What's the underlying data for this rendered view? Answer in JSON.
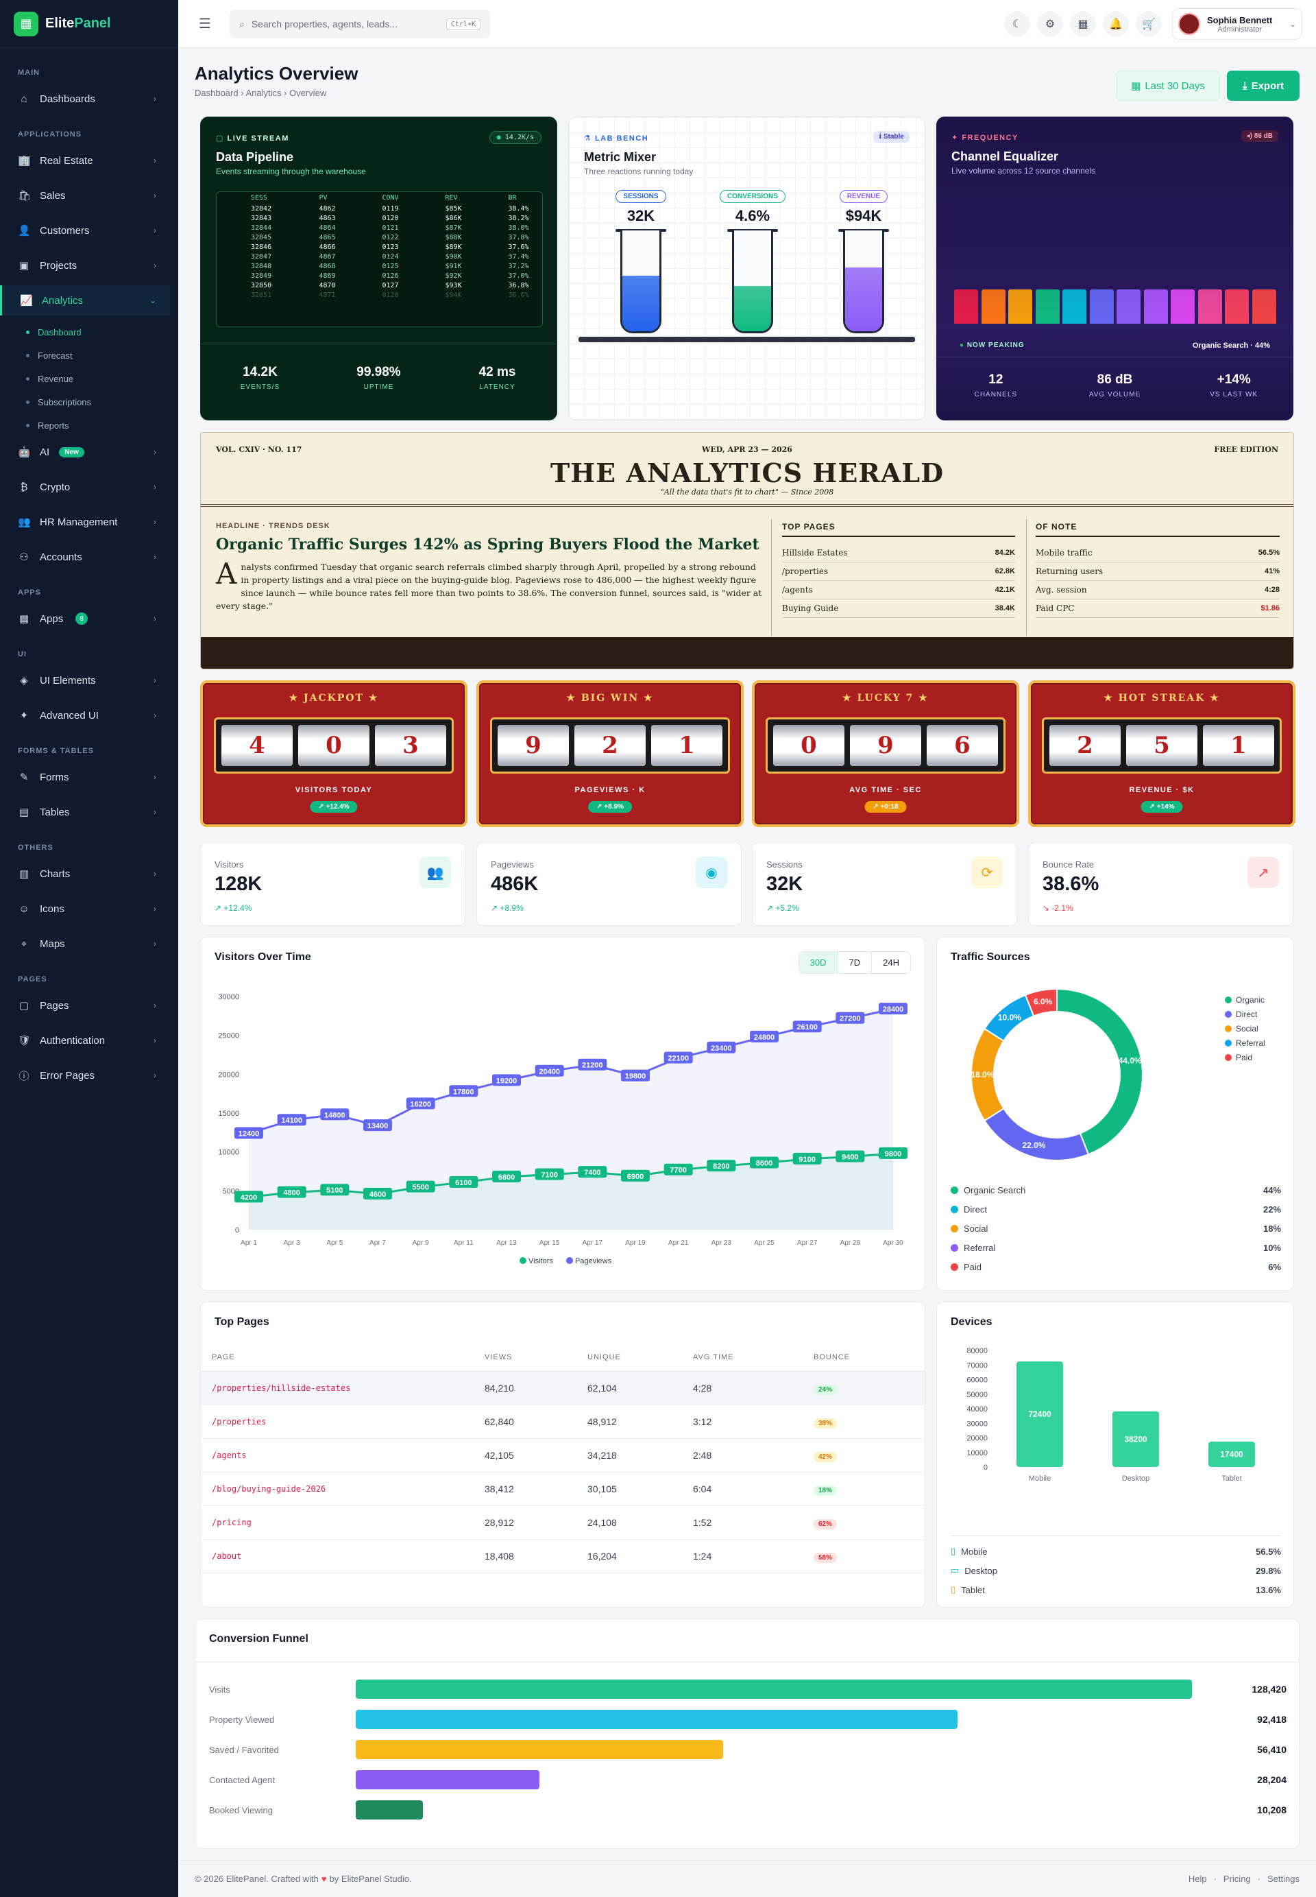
{
  "app": {
    "brand_a": "Elite",
    "brand_b": "Panel"
  },
  "sidebar": {
    "sections": [
      "MAIN",
      "APPLICATIONS",
      "APPS",
      "UI",
      "FORMS & TABLES",
      "OTHERS",
      "PAGES"
    ],
    "items": [
      {
        "label": "Dashboards"
      },
      {
        "label": "Real Estate"
      },
      {
        "label": "Sales"
      },
      {
        "label": "Customers"
      },
      {
        "label": "Projects"
      },
      {
        "label": "Analytics"
      },
      {
        "label": "AI",
        "badge": "New"
      },
      {
        "label": "Crypto"
      },
      {
        "label": "HR Management"
      },
      {
        "label": "Accounts"
      },
      {
        "label": "Apps",
        "badge": "8"
      },
      {
        "label": "UI Elements"
      },
      {
        "label": "Advanced UI"
      },
      {
        "label": "Forms"
      },
      {
        "label": "Tables"
      },
      {
        "label": "Charts"
      },
      {
        "label": "Icons"
      },
      {
        "label": "Maps"
      },
      {
        "label": "Pages"
      },
      {
        "label": "Authentication"
      },
      {
        "label": "Error Pages"
      }
    ],
    "sub": [
      "Dashboard",
      "Forecast",
      "Revenue",
      "Subscriptions",
      "Reports"
    ]
  },
  "topbar": {
    "search_placeholder": "Search properties, agents, leads...",
    "kbd": "Ctrl+K",
    "user_name": "Sophia Bennett",
    "user_role": "Administrator"
  },
  "header": {
    "title": "Analytics Overview",
    "crumbs": [
      "Dashboard",
      "Analytics",
      "Overview"
    ],
    "range_btn": "Last 30 Days",
    "export_btn": "Export"
  },
  "pipeline": {
    "tag": "LIVE STREAM",
    "rate": "14.2K/s",
    "title": "Data Pipeline",
    "subtitle": "Events streaming through the warehouse",
    "cols": [
      "SESS",
      "PV",
      "CONV",
      "REV",
      "BR"
    ],
    "rows": [
      [
        "32842",
        "4862",
        "0119",
        "$85K",
        "38.4%"
      ],
      [
        "32843",
        "4863",
        "0120",
        "$86K",
        "38.2%"
      ],
      [
        "32844",
        "4864",
        "0121",
        "$87K",
        "38.0%"
      ],
      [
        "32845",
        "4865",
        "0122",
        "$88K",
        "37.8%"
      ],
      [
        "32846",
        "4866",
        "0123",
        "$89K",
        "37.6%"
      ],
      [
        "32847",
        "4867",
        "0124",
        "$90K",
        "37.4%"
      ],
      [
        "32848",
        "4868",
        "0125",
        "$91K",
        "37.2%"
      ],
      [
        "32849",
        "4869",
        "0126",
        "$92K",
        "37.0%"
      ],
      [
        "32850",
        "4870",
        "0127",
        "$93K",
        "36.8%"
      ],
      [
        "32851",
        "4871",
        "0128",
        "$94K",
        "36.6%"
      ]
    ],
    "stats": [
      {
        "v": "14.2K",
        "l": "EVENTS/S"
      },
      {
        "v": "99.98%",
        "l": "UPTIME"
      },
      {
        "v": "42 ms",
        "l": "LATENCY"
      }
    ]
  },
  "mixer": {
    "tag": "LAB BENCH",
    "status": "Stable",
    "title": "Metric Mixer",
    "subtitle": "Three reactions running today",
    "tubes": [
      {
        "label": "SESSIONS",
        "value": "32K",
        "color": "#2563eb",
        "fill": 0.55
      },
      {
        "label": "CONVERSIONS",
        "value": "4.6%",
        "color": "#10b981",
        "fill": 0.45
      },
      {
        "label": "REVENUE",
        "value": "$94K",
        "color": "#8b5cf6",
        "fill": 0.63
      }
    ]
  },
  "eq": {
    "tag": "FREQUENCY",
    "level": "86 dB",
    "title": "Channel Equalizer",
    "subtitle": "Live volume across 12 source channels",
    "peak_label": "NOW PEAKING",
    "peak_value": "Organic Search · 44%",
    "bars": [
      0.8,
      0.8,
      0.8,
      0.8,
      0.8,
      0.8,
      0.8,
      0.8,
      0.8,
      0.8,
      0.8,
      0.8
    ],
    "colors": [
      "#e11d48",
      "#f97316",
      "#f59e0b",
      "#10b981",
      "#06b6d4",
      "#6366f1",
      "#8b5cf6",
      "#a855f7",
      "#d946ef",
      "#ec4899",
      "#f43f5e",
      "#ef4444"
    ],
    "stats": [
      {
        "v": "12",
        "l": "CHANNELS"
      },
      {
        "v": "86 dB",
        "l": "AVG VOLUME"
      },
      {
        "v": "+14%",
        "l": "VS LAST WK"
      }
    ]
  },
  "herald": {
    "vol": "VOL. CXIV · NO. 117",
    "date": "WED, APR 23 — 2026",
    "edition": "FREE EDITION",
    "masthead": "THE ANALYTICS HERALD",
    "motto": "\"All the data that's fit to chart\" — Since 2008",
    "kicker": "HEADLINE · TRENDS DESK",
    "headline": "Organic Traffic Surges 142% as Spring Buyers Flood the Market",
    "drop": "A",
    "body": "nalysts confirmed Tuesday that organic search referrals climbed sharply through April, propelled by a strong rebound in property listings and a viral piece on the buying-guide blog. Pageviews rose to 486,000 — the highest weekly figure since launch — while bounce rates fell more than two points to 38.6%. The conversion funnel, sources said, is \"wider at every stage.\"",
    "top_title": "TOP PAGES",
    "top": [
      [
        "Hillside Estates",
        "84.2K"
      ],
      [
        "/properties",
        "62.8K"
      ],
      [
        "/agents",
        "42.1K"
      ],
      [
        "Buying Guide",
        "38.4K"
      ]
    ],
    "note_title": "OF NOTE",
    "note": [
      [
        "Mobile traffic",
        "56.5%"
      ],
      [
        "Returning users",
        "41%"
      ],
      [
        "Avg. session",
        "4:28"
      ],
      [
        "Paid CPC",
        "$1.86"
      ]
    ]
  },
  "slots": [
    {
      "title": "★ JACKPOT ★",
      "digits": [
        "4",
        "0",
        "3"
      ],
      "label": "VISITORS TODAY",
      "pill": "↗ +12.4%",
      "pill_color": "#10b981"
    },
    {
      "title": "★ BIG WIN ★",
      "digits": [
        "9",
        "2",
        "1"
      ],
      "label": "PAGEVIEWS · K",
      "pill": "↗ +8.9%",
      "pill_color": "#10b981"
    },
    {
      "title": "★ LUCKY 7 ★",
      "digits": [
        "0",
        "9",
        "6"
      ],
      "label": "AVG TIME · SEC",
      "pill": "↗ +0:18",
      "pill_color": "#f59e0b"
    },
    {
      "title": "★ HOT STREAK ★",
      "digits": [
        "2",
        "5",
        "1"
      ],
      "label": "REVENUE · $K",
      "pill": "↗ +14%",
      "pill_color": "#10b981"
    }
  ],
  "stats": [
    {
      "label": "Visitors",
      "value": "128K",
      "change": "↗ +12.4%",
      "color": "#10b981",
      "bg": "#e7f8ef",
      "icon": "users-icon",
      "glyph": "👥"
    },
    {
      "label": "Pageviews",
      "value": "486K",
      "change": "↗ +8.9%",
      "color": "#10b981",
      "bg": "#e0f5fc",
      "icon": "eye-icon",
      "glyph": "◉"
    },
    {
      "label": "Sessions",
      "value": "32K",
      "change": "↗ +5.2%",
      "color": "#10b981",
      "bg": "#fef6d8",
      "icon": "refresh-icon",
      "glyph": "⟳"
    },
    {
      "label": "Bounce Rate",
      "value": "38.6%",
      "change": "↘ -2.1%",
      "color": "#ef4444",
      "bg": "#fde8e8",
      "icon": "external-link-icon",
      "glyph": "↗"
    }
  ],
  "visitors_chart": {
    "title": "Visitors Over Time",
    "tabs": [
      "30D",
      "7D",
      "24H"
    ]
  },
  "chart_data": [
    {
      "type": "line",
      "title": "Visitors Over Time",
      "x": [
        "Apr 1",
        "Apr 3",
        "Apr 5",
        "Apr 7",
        "Apr 9",
        "Apr 11",
        "Apr 13",
        "Apr 15",
        "Apr 17",
        "Apr 19",
        "Apr 21",
        "Apr 23",
        "Apr 25",
        "Apr 27",
        "Apr 29",
        "Apr 30"
      ],
      "y_ticks": [
        0,
        5000,
        10000,
        15000,
        20000,
        25000,
        30000
      ],
      "ylim": [
        0,
        30000
      ],
      "series": [
        {
          "name": "Visitors",
          "color": "#10b981",
          "values": [
            4200,
            4800,
            5100,
            4600,
            5500,
            6100,
            6800,
            7100,
            7400,
            6900,
            7700,
            8200,
            8600,
            9100,
            9400,
            9800
          ]
        },
        {
          "name": "Pageviews",
          "color": "#6366f1",
          "values": [
            12400,
            14100,
            14800,
            13400,
            16200,
            17800,
            19200,
            20400,
            21200,
            19800,
            22100,
            23400,
            24800,
            26100,
            27200,
            28400
          ]
        }
      ]
    },
    {
      "type": "pie",
      "title": "Traffic Sources",
      "categories": [
        "Organic",
        "Direct",
        "Social",
        "Referral",
        "Paid"
      ],
      "full_names": [
        "Organic Search",
        "Direct",
        "Social",
        "Referral",
        "Paid"
      ],
      "values": [
        44,
        22,
        18,
        10,
        6
      ],
      "colors": [
        "#10b981",
        "#6366f1",
        "#f59e0b",
        "#0ea5e9",
        "#ef4444"
      ],
      "list_colors": [
        "#10b981",
        "#06b6d4",
        "#f59e0b",
        "#8b5cf6",
        "#ef4444"
      ]
    },
    {
      "type": "bar",
      "title": "Devices",
      "categories": [
        "Mobile",
        "Desktop",
        "Tablet"
      ],
      "values": [
        72400,
        38200,
        17400
      ],
      "y_ticks": [
        0,
        10000,
        20000,
        30000,
        40000,
        50000,
        60000,
        70000,
        80000
      ],
      "ylim": [
        0,
        80000
      ],
      "shares": [
        "56.5%",
        "29.8%",
        "13.6%"
      ]
    }
  ],
  "top_pages": {
    "title": "Top Pages",
    "cols": [
      "PAGE",
      "VIEWS",
      "UNIQUE",
      "AVG TIME",
      "BOUNCE"
    ],
    "rows": [
      [
        "/properties/hillside-estates",
        "84,210",
        "62,104",
        "4:28",
        "24%"
      ],
      [
        "/properties",
        "62,840",
        "48,912",
        "3:12",
        "38%"
      ],
      [
        "/agents",
        "42,105",
        "34,218",
        "2:48",
        "42%"
      ],
      [
        "/blog/buying-guide-2026",
        "38,412",
        "30,105",
        "6:04",
        "18%"
      ],
      [
        "/pricing",
        "28,912",
        "24,108",
        "1:52",
        "62%"
      ],
      [
        "/about",
        "18,408",
        "16,204",
        "1:24",
        "58%"
      ]
    ]
  },
  "funnel": {
    "title": "Conversion Funnel",
    "rows": [
      {
        "label": "Visits",
        "value": "128,420",
        "frac": 1.0,
        "color": "#22c58b"
      },
      {
        "label": "Property Viewed",
        "value": "92,418",
        "frac": 0.72,
        "color": "#22c3e6"
      },
      {
        "label": "Saved / Favorited",
        "value": "56,410",
        "frac": 0.439,
        "color": "#f7b818"
      },
      {
        "label": "Contacted Agent",
        "value": "28,204",
        "frac": 0.22,
        "color": "#8b5cf6"
      },
      {
        "label": "Booked Viewing",
        "value": "10,208",
        "frac": 0.08,
        "color": "#1f8a5b"
      }
    ]
  },
  "footer": {
    "left_a": "© 2026 ElitePanel. Crafted with",
    "left_b": "by ElitePanel Studio.",
    "links": [
      "Help",
      "Pricing",
      "Settings"
    ]
  }
}
